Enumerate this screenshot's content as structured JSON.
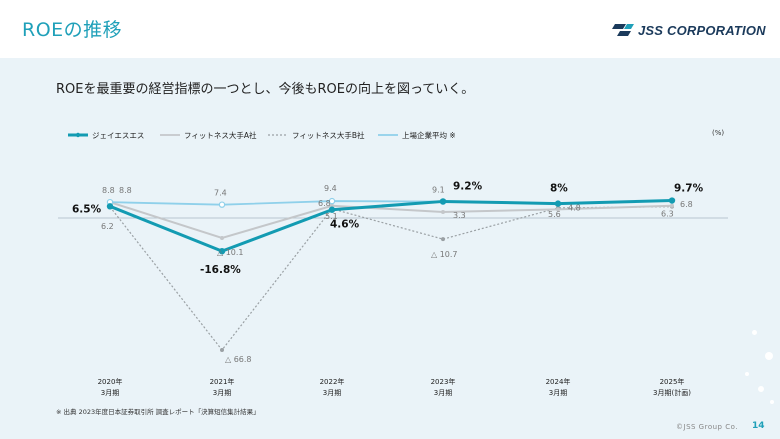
{
  "page": {
    "title": "ROEの推移",
    "brand": "JSS CORPORATION",
    "subtitle": "ROEを最重要の経営指標の一つとし、今後もROEの向上を図っていく。",
    "footnote": "※ 出典 2023年度日本証券取引所 調査レポート「決算短信集計結果」",
    "copyright": "©JSS Group Co.",
    "page_number": "14",
    "unit": "(%)"
  },
  "chart_data": {
    "type": "line",
    "categories": [
      [
        "2020年",
        "3月期"
      ],
      [
        "2021年",
        "3月期"
      ],
      [
        "2022年",
        "3月期"
      ],
      [
        "2023年",
        "3月期"
      ],
      [
        "2024年",
        "3月期"
      ],
      [
        "2025年",
        "3月期(計画)"
      ]
    ],
    "ylim": [
      -70,
      15
    ],
    "series": [
      {
        "name": "ジェイエスエス",
        "values": [
          6.5,
          -16.8,
          4.6,
          9.2,
          8,
          9.7
        ],
        "labels": [
          "6.5%",
          "-16.8%",
          "4.6%",
          "9.2%",
          "8%",
          "9.7%"
        ],
        "color": "#139bb2"
      },
      {
        "name": "フィットネス大手A社",
        "values": [
          8.8,
          -10.1,
          6.8,
          3.3,
          4.8,
          6.8
        ],
        "labels": [
          "8.8",
          "△ 10.1",
          "6.8",
          "3.3",
          "4.8",
          "6.8"
        ],
        "color": "#c4c7ca"
      },
      {
        "name": "フィットネス大手B社",
        "values": [
          6.2,
          -66.8,
          5.1,
          -10.7,
          5.6,
          6.3
        ],
        "labels": [
          "6.2",
          "△ 66.8",
          "5.1",
          "△ 10.7",
          "5.6",
          "6.3"
        ],
        "color": "#9aa0a4"
      },
      {
        "name": "上場企業平均 ※",
        "values": [
          8.8,
          7.4,
          9.4,
          9.1,
          null,
          null
        ],
        "labels": [
          "8.8",
          "7.4",
          "9.4",
          "9.1",
          "",
          ""
        ],
        "color": "#8fd0ea"
      }
    ]
  }
}
